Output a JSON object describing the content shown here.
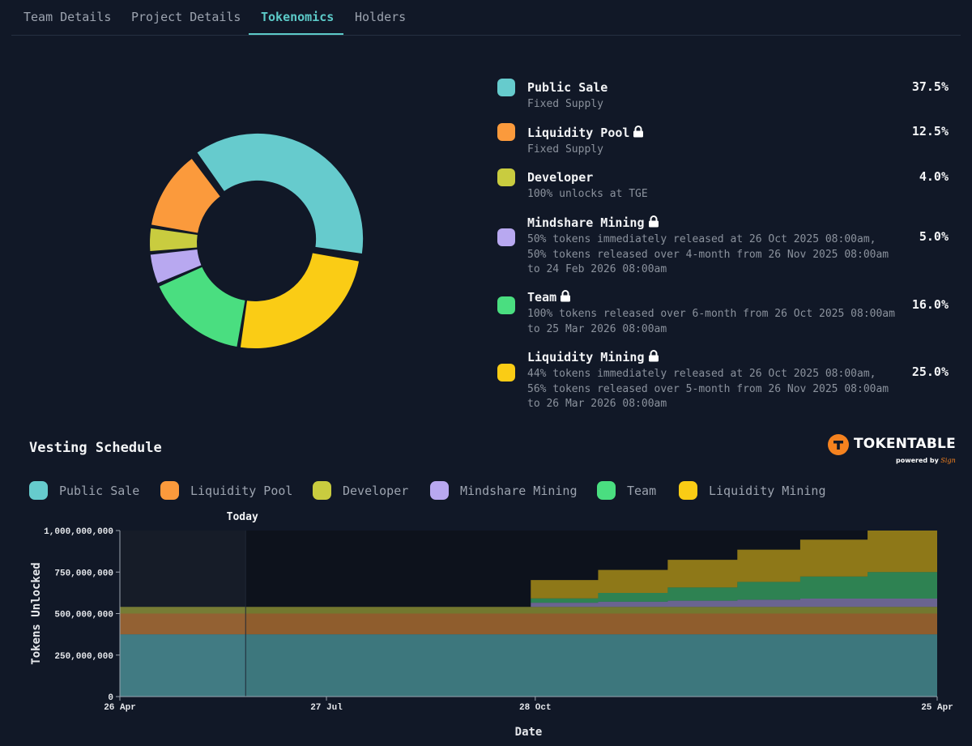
{
  "tabs": [
    {
      "label": "Team Details",
      "active": false
    },
    {
      "label": "Project Details",
      "active": false
    },
    {
      "label": "Tokenomics",
      "active": true
    },
    {
      "label": "Holders",
      "active": false
    }
  ],
  "allocations": [
    {
      "name": "Public Sale",
      "locked": false,
      "description": "Fixed Supply",
      "percent_label": "37.5%",
      "percent": 37.5,
      "color": "#66cbcd"
    },
    {
      "name": "Liquidity Pool",
      "locked": true,
      "description": "Fixed Supply",
      "percent_label": "12.5%",
      "percent": 12.5,
      "color": "#fb9a3c"
    },
    {
      "name": "Developer",
      "locked": false,
      "description": "100% unlocks at TGE",
      "percent_label": "4.0%",
      "percent": 4.0,
      "color": "#c9cc3f"
    },
    {
      "name": "Mindshare Mining",
      "locked": true,
      "description": "50% tokens immediately released at 26 Oct 2025 08:00am, 50% tokens released over 4-month from 26 Nov 2025 08:00am to 24 Feb 2026 08:00am",
      "percent_label": "5.0%",
      "percent": 5.0,
      "color": "#b8a8f0"
    },
    {
      "name": "Team",
      "locked": true,
      "description": "100% tokens released over 6-month from 26 Oct 2025 08:00am to 25 Mar 2026 08:00am",
      "percent_label": "16.0%",
      "percent": 16.0,
      "color": "#4ade80"
    },
    {
      "name": "Liquidity Mining",
      "locked": true,
      "description": "44% tokens immediately released at 26 Oct 2025 08:00am, 56% tokens released over 5-month from 26 Nov 2025 08:00am to 26 Mar 2026 08:00am",
      "percent_label": "25.0%",
      "percent": 25.0,
      "color": "#facc15"
    }
  ],
  "vesting": {
    "title": "Vesting Schedule",
    "brand_name": "TOKENTABLE",
    "brand_powered_prefix": "powered by",
    "brand_powered_by": "Sign",
    "today_label": "Today",
    "xlabel": "Date",
    "ylabel": "Tokens Unlocked"
  },
  "chart_data": {
    "type": "area",
    "title": "Vesting Schedule",
    "xlabel": "Date",
    "ylabel": "Tokens Unlocked",
    "ylim": [
      0,
      1000000000
    ],
    "yticks": [
      0,
      250000000,
      500000000,
      750000000,
      1000000000
    ],
    "ytick_labels": [
      "0",
      "250,000,000",
      "500,000,000",
      "750,000,000",
      "1,000,000,000"
    ],
    "xticks": [
      0,
      92,
      185,
      364
    ],
    "xtick_labels": [
      "26 Apr",
      "27 Jul",
      "28 Oct",
      "25 Apr"
    ],
    "x_unit": "days since 26 Apr 2025",
    "xlim": [
      0,
      364
    ],
    "today_x": 56,
    "x": [
      0,
      182,
      183,
      213,
      244,
      275,
      303,
      333,
      364
    ],
    "series": [
      {
        "name": "Public Sale",
        "color": "#66cbcd",
        "values": [
          375000000,
          375000000,
          375000000,
          375000000,
          375000000,
          375000000,
          375000000,
          375000000,
          375000000
        ]
      },
      {
        "name": "Liquidity Pool",
        "color": "#fb9a3c",
        "values": [
          125000000,
          125000000,
          125000000,
          125000000,
          125000000,
          125000000,
          125000000,
          125000000,
          125000000
        ]
      },
      {
        "name": "Developer",
        "color": "#c9cc3f",
        "values": [
          40000000,
          40000000,
          40000000,
          40000000,
          40000000,
          40000000,
          40000000,
          40000000,
          40000000
        ]
      },
      {
        "name": "Mindshare Mining",
        "color": "#b8a8f0",
        "values": [
          0,
          0,
          25000000,
          31250000,
          37500000,
          43750000,
          50000000,
          50000000,
          50000000
        ]
      },
      {
        "name": "Team",
        "color": "#4ade80",
        "values": [
          0,
          0,
          26700000,
          53300000,
          80000000,
          107000000,
          133000000,
          160000000,
          160000000
        ]
      },
      {
        "name": "Liquidity Mining",
        "color": "#facc15",
        "values": [
          0,
          0,
          110000000,
          138000000,
          166000000,
          194000000,
          222000000,
          250000000,
          250000000
        ]
      }
    ]
  }
}
